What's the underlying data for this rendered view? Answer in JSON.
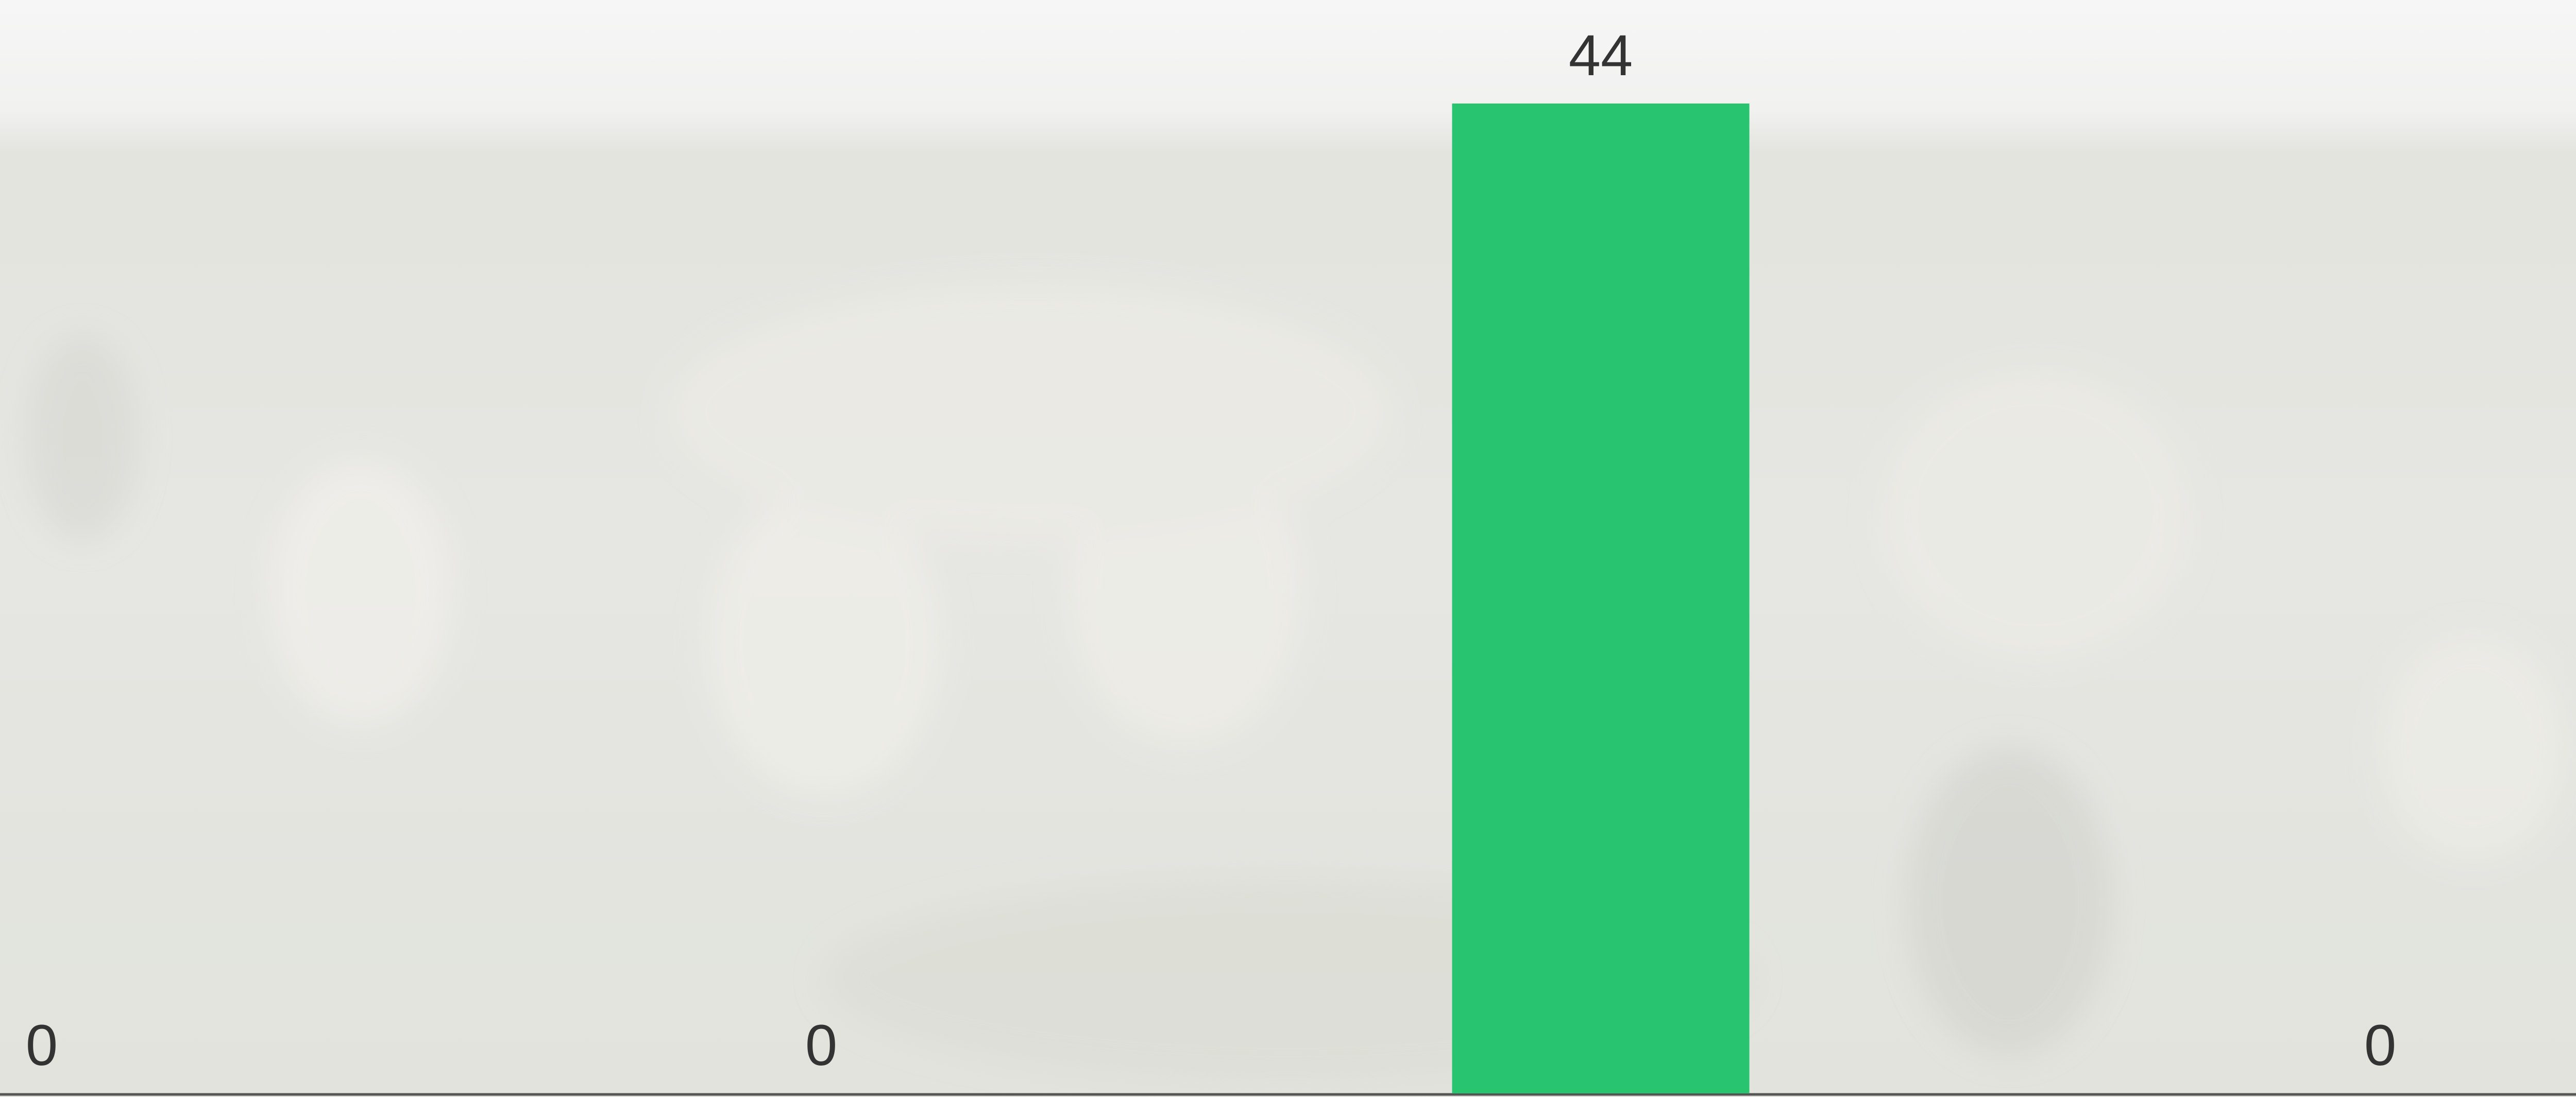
{
  "chart_data": {
    "type": "bar",
    "categories": [
      null,
      null,
      null,
      null
    ],
    "values": [
      0,
      0,
      44,
      0
    ],
    "color": "#28c470"
  }
}
